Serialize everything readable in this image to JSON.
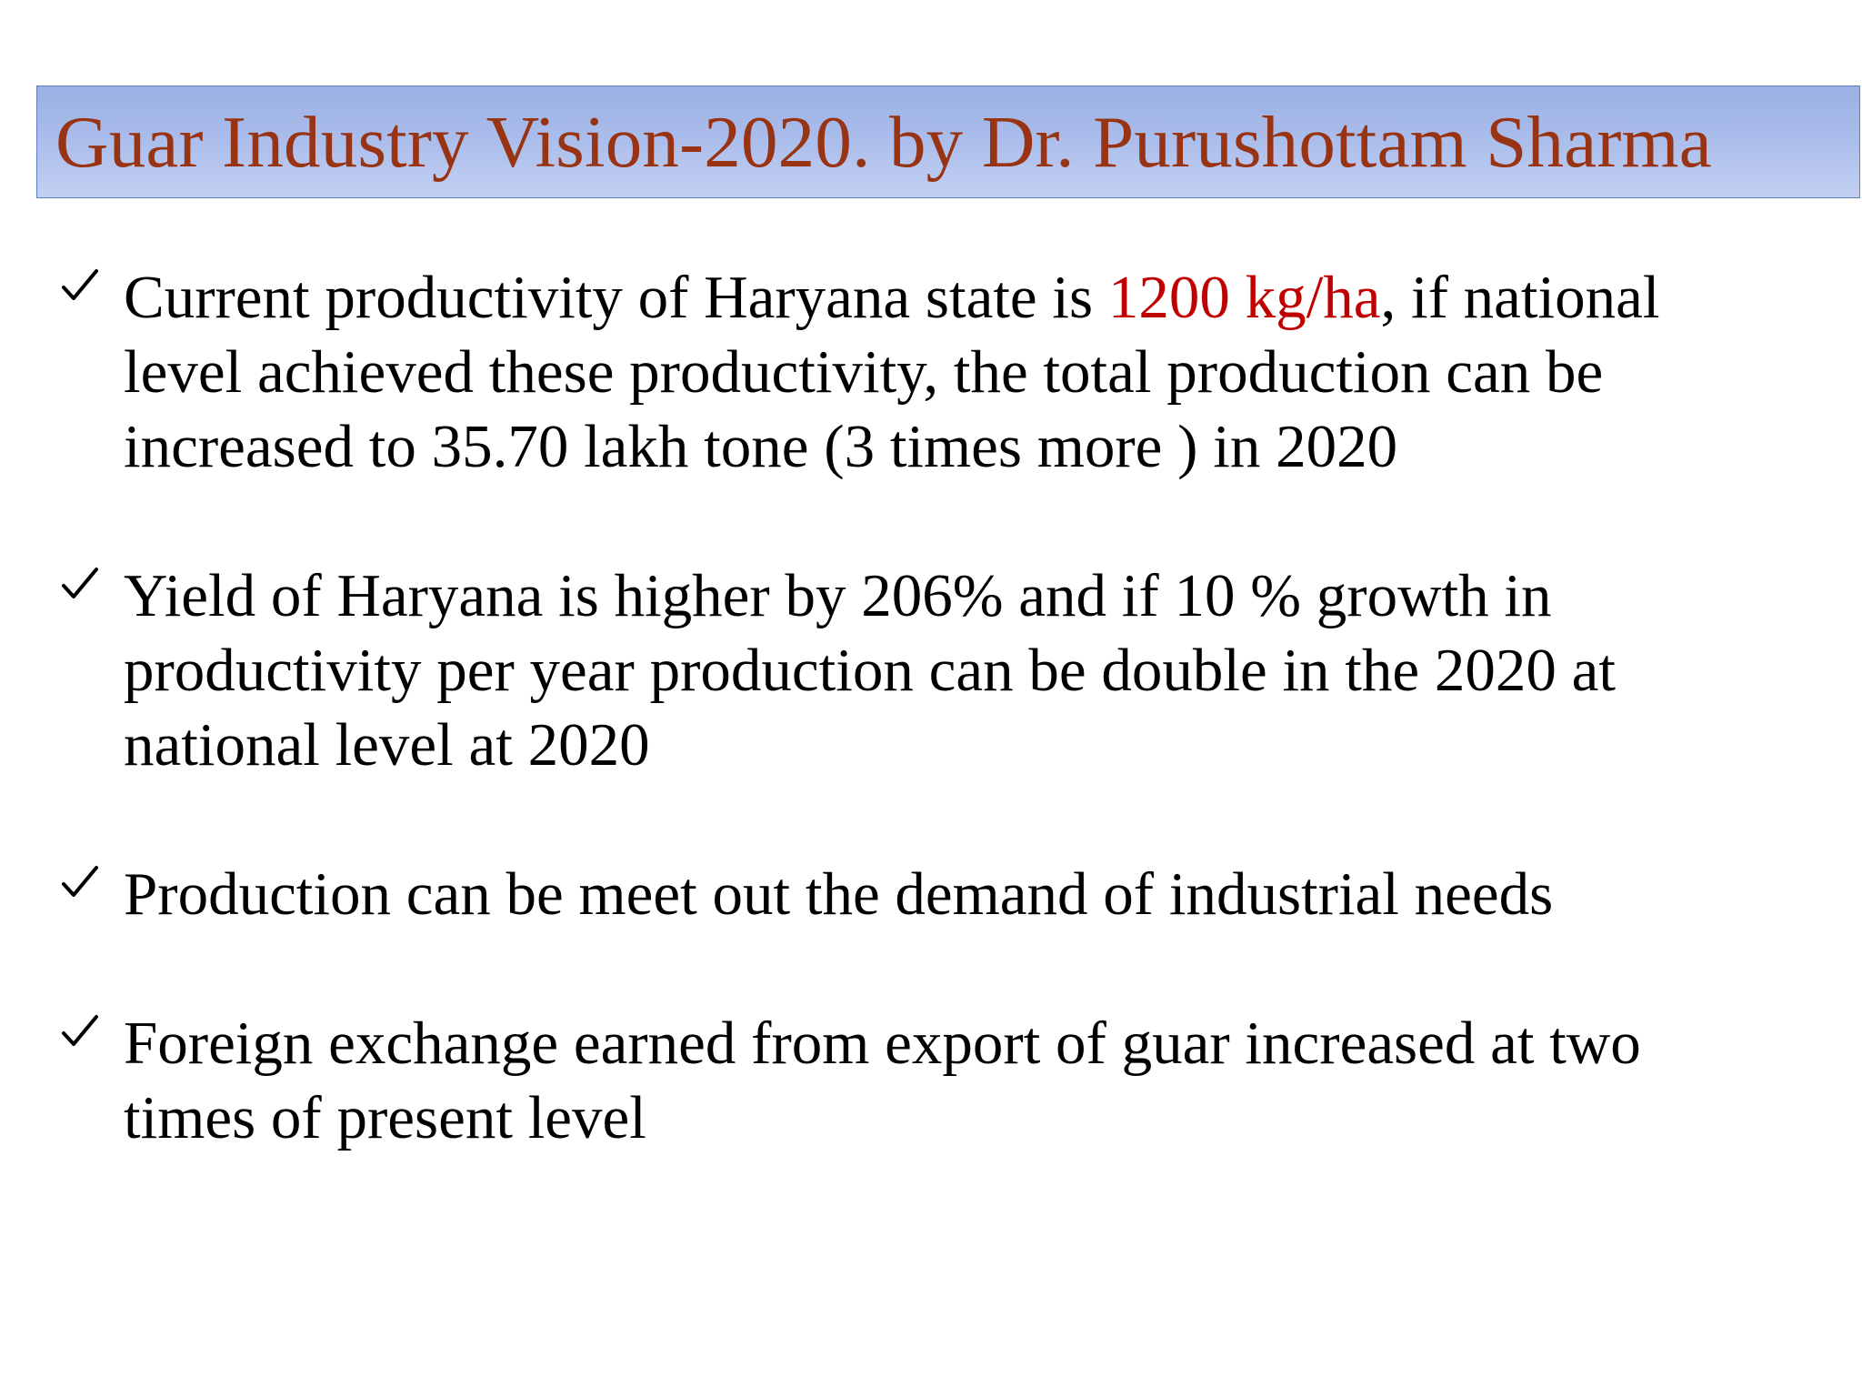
{
  "slide": {
    "title": "Guar Industry Vision-2020. by Dr. Purushottam Sharma",
    "colors": {
      "title_text": "#983314",
      "title_bar_fill": "#a9bceb",
      "title_bar_border": "#5b7fbf",
      "highlight": "#c00000",
      "body_text": "#000000"
    },
    "bullet_icon": "checkmark-icon",
    "bullets": [
      {
        "before": "Current productivity of Haryana state is ",
        "highlight": "1200 kg/ha",
        "after": ", if national level achieved these productivity, the total production can be increased to 35.70 lakh tone (3 times more ) in 2020"
      },
      {
        "text": "Yield of Haryana is higher by 206% and if 10 % growth in productivity per year production can be double in the 2020 at national level at 2020"
      },
      {
        "text": "Production can be meet out the demand of industrial needs"
      },
      {
        "text": "Foreign exchange earned from export of guar increased at two times of present level"
      }
    ]
  }
}
